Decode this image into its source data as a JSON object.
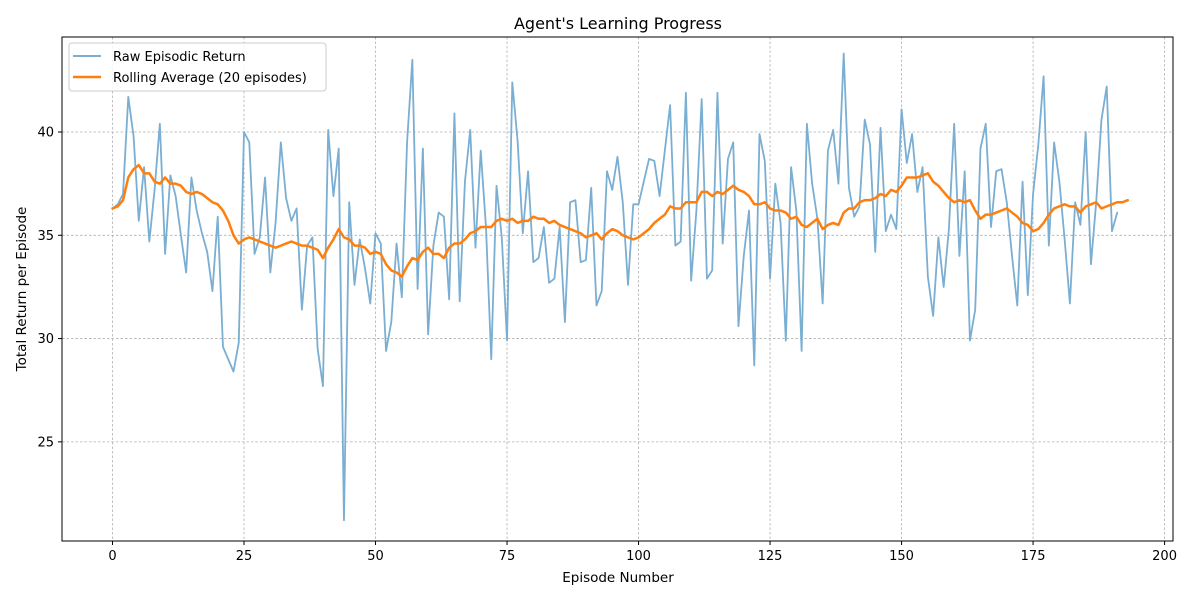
{
  "chart_data": {
    "type": "line",
    "title": "Agent's Learning Progress",
    "xlabel": "Episode Number",
    "ylabel": "Total Return per Episode",
    "xlim": [
      -9.6,
      201.6
    ],
    "ylim": [
      20.2,
      44.6
    ],
    "xticks": [
      0,
      25,
      50,
      75,
      100,
      125,
      150,
      175,
      200
    ],
    "yticks": [
      25,
      30,
      35,
      40
    ],
    "grid": true,
    "legend_position": "top-left",
    "series": [
      {
        "name": "Raw Episodic Return",
        "color": "#7aaed2",
        "x_start": 0,
        "values": [
          36.3,
          36.5,
          37.0,
          41.7,
          39.8,
          35.7,
          38.3,
          34.7,
          37.2,
          40.4,
          34.1,
          37.9,
          36.9,
          35.0,
          33.2,
          37.8,
          36.2,
          35.1,
          34.2,
          32.3,
          35.9,
          29.6,
          29.0,
          28.4,
          29.8,
          40.0,
          39.5,
          34.1,
          34.9,
          37.8,
          33.2,
          35.6,
          39.5,
          36.8,
          35.7,
          36.3,
          31.4,
          34.5,
          34.9,
          29.5,
          27.7,
          40.1,
          36.9,
          39.2,
          21.2,
          36.6,
          32.6,
          34.8,
          33.4,
          31.7,
          35.1,
          34.6,
          29.4,
          30.8,
          34.6,
          32.0,
          39.5,
          43.5,
          32.4,
          39.2,
          30.2,
          34.5,
          36.1,
          35.9,
          31.9,
          40.9,
          31.8,
          37.6,
          40.1,
          34.4,
          39.1,
          35.4,
          29.0,
          37.4,
          34.9,
          29.9,
          42.4,
          39.6,
          35.1,
          38.1,
          33.7,
          33.9,
          35.4,
          32.7,
          32.9,
          35.4,
          30.8,
          36.6,
          36.7,
          33.7,
          33.8,
          37.3,
          31.6,
          32.3,
          38.1,
          37.2,
          38.8,
          36.6,
          32.6,
          36.5,
          36.5,
          37.6,
          38.7,
          38.6,
          36.9,
          39.1,
          41.3,
          34.5,
          34.7,
          41.9,
          32.8,
          36.2,
          41.6,
          32.9,
          33.3,
          41.9,
          34.6,
          38.7,
          39.5,
          30.6,
          34.0,
          36.2,
          28.7,
          39.9,
          38.6,
          32.9,
          37.5,
          35.6,
          29.9,
          38.3,
          36.2,
          29.4,
          40.4,
          37.5,
          35.8,
          31.7,
          39.1,
          40.1,
          37.5,
          43.8,
          37.3,
          35.9,
          36.4,
          40.6,
          39.4,
          34.2,
          40.2,
          35.2,
          36.0,
          35.3,
          41.1,
          38.5,
          39.9,
          37.1,
          38.3,
          33.0,
          31.1,
          34.9,
          32.5,
          35.3,
          40.4,
          34.0,
          38.1,
          29.9,
          31.4,
          39.2,
          40.4,
          35.4,
          38.1,
          38.2,
          36.6,
          34.0,
          31.6,
          37.6,
          32.1,
          37.0,
          39.4,
          42.7,
          34.5,
          39.5,
          37.6,
          34.8,
          31.7,
          36.6,
          35.5,
          40.0,
          33.6,
          36.6,
          40.6,
          42.2,
          35.2,
          36.1
        ]
      },
      {
        "name": "Rolling Average (20 episodes)",
        "color": "#ff7f0e",
        "x_start": 0,
        "values": [
          36.3,
          36.4,
          36.7,
          37.8,
          38.2,
          38.4,
          38.0,
          38.0,
          37.6,
          37.5,
          37.8,
          37.5,
          37.5,
          37.4,
          37.1,
          37.0,
          37.1,
          37.0,
          36.8,
          36.6,
          36.5,
          36.2,
          35.7,
          35.0,
          34.6,
          34.8,
          34.9,
          34.8,
          34.7,
          34.6,
          34.5,
          34.4,
          34.5,
          34.6,
          34.7,
          34.6,
          34.5,
          34.5,
          34.4,
          34.3,
          33.9,
          34.4,
          34.8,
          35.3,
          34.9,
          34.8,
          34.5,
          34.5,
          34.4,
          34.1,
          34.2,
          34.1,
          33.6,
          33.3,
          33.2,
          33.0,
          33.5,
          33.9,
          33.8,
          34.2,
          34.4,
          34.1,
          34.1,
          33.9,
          34.4,
          34.6,
          34.6,
          34.8,
          35.1,
          35.2,
          35.4,
          35.4,
          35.4,
          35.7,
          35.8,
          35.7,
          35.8,
          35.6,
          35.7,
          35.7,
          35.9,
          35.8,
          35.8,
          35.6,
          35.7,
          35.5,
          35.4,
          35.3,
          35.2,
          35.1,
          34.9,
          35.0,
          35.1,
          34.8,
          35.1,
          35.3,
          35.2,
          35.0,
          34.9,
          34.8,
          34.9,
          35.1,
          35.3,
          35.6,
          35.8,
          36.0,
          36.4,
          36.3,
          36.3,
          36.6,
          36.6,
          36.6,
          37.1,
          37.1,
          36.9,
          37.1,
          37.0,
          37.2,
          37.4,
          37.2,
          37.1,
          36.9,
          36.5,
          36.5,
          36.6,
          36.3,
          36.2,
          36.2,
          36.1,
          35.8,
          35.9,
          35.5,
          35.4,
          35.6,
          35.8,
          35.3,
          35.5,
          35.6,
          35.5,
          36.1,
          36.3,
          36.3,
          36.6,
          36.7,
          36.7,
          36.8,
          37.0,
          36.9,
          37.2,
          37.1,
          37.4,
          37.8,
          37.8,
          37.8,
          37.9,
          38.0,
          37.6,
          37.4,
          37.1,
          36.8,
          36.6,
          36.7,
          36.6,
          36.7,
          36.2,
          35.8,
          36.0,
          36.0,
          36.1,
          36.2,
          36.3,
          36.1,
          35.9,
          35.6,
          35.5,
          35.2,
          35.3,
          35.6,
          36.0,
          36.3,
          36.4,
          36.5,
          36.4,
          36.4,
          36.1,
          36.4,
          36.5,
          36.6,
          36.3,
          36.4,
          36.5,
          36.6,
          36.6,
          36.7
        ]
      }
    ]
  }
}
